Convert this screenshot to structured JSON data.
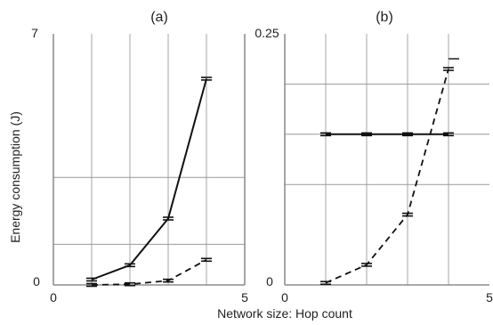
{
  "chart_data": [
    {
      "type": "line",
      "title": "(a)",
      "xlim": [
        0,
        5
      ],
      "ylim": [
        0,
        7
      ],
      "x_tick_labels": [
        "0",
        "5"
      ],
      "y_tick_labels": [
        "0",
        "7"
      ],
      "grid": true,
      "series": [
        {
          "style": "solid",
          "x": [
            1,
            2,
            3,
            4
          ],
          "y": [
            0.15,
            0.55,
            1.85,
            5.75
          ]
        },
        {
          "style": "dashed",
          "x": [
            1,
            2,
            3,
            4
          ],
          "y": [
            0.0,
            0.02,
            0.12,
            0.7
          ]
        }
      ]
    },
    {
      "type": "line",
      "title": "(b)",
      "xlim": [
        0,
        5
      ],
      "ylim": [
        0,
        0.25
      ],
      "x_tick_labels": [
        "0",
        "5"
      ],
      "y_tick_labels": [
        "0",
        "0.25"
      ],
      "grid": true,
      "series": [
        {
          "style": "solid",
          "x": [
            1,
            2,
            3,
            4
          ],
          "y": [
            0.15,
            0.15,
            0.15,
            0.15
          ]
        },
        {
          "style": "dashed",
          "x": [
            1,
            2,
            3,
            4
          ],
          "y": [
            0.002,
            0.02,
            0.07,
            0.215
          ]
        }
      ]
    }
  ],
  "ylabel": "Energy consumption (J)",
  "xlabel": "Network size: Hop count"
}
